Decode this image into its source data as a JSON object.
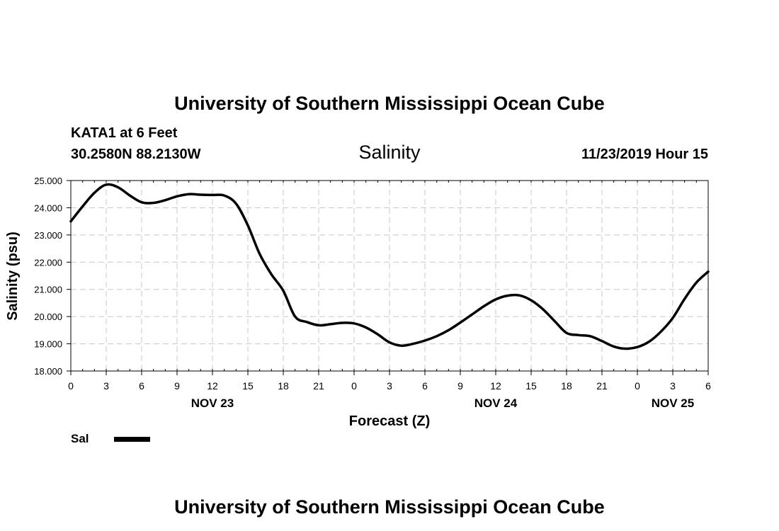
{
  "header": {
    "title_top": "University of Southern Mississippi Ocean Cube",
    "station": "KATA1 at 6 Feet",
    "coords": "30.2580N 88.2130W",
    "datetime": "11/23/2019 Hour 15"
  },
  "footer": {
    "title_bottom": "University of Southern Mississippi Ocean Cube"
  },
  "colors": {
    "line": "#000000",
    "grid": "#c8c8c8",
    "background": "#ffffff"
  },
  "chart_data": {
    "type": "line",
    "title": "Salinity",
    "xlabel": "Forecast (Z)",
    "ylabel": "Salinity (psu)",
    "ylim": [
      18,
      25
    ],
    "xlim": [
      0,
      54
    ],
    "grid": true,
    "y_ticks": [
      "18.000",
      "19.000",
      "20.000",
      "21.000",
      "22.000",
      "23.000",
      "24.000",
      "25.000"
    ],
    "x_tick_labels": [
      "0",
      "3",
      "6",
      "9",
      "12",
      "15",
      "18",
      "21",
      "0",
      "3",
      "6",
      "9",
      "12",
      "15",
      "18",
      "21",
      "0",
      "3",
      "6"
    ],
    "x_tick_hours": [
      0,
      3,
      6,
      9,
      12,
      15,
      18,
      21,
      24,
      27,
      30,
      33,
      36,
      39,
      42,
      45,
      48,
      51,
      54
    ],
    "date_labels": [
      {
        "label": "NOV 23",
        "hour": 12
      },
      {
        "label": "NOV 24",
        "hour": 36
      },
      {
        "label": "NOV 25",
        "hour": 51
      }
    ],
    "legend": {
      "label": "Sal",
      "placement": "bottom-left"
    },
    "series": [
      {
        "name": "Sal",
        "x": [
          0,
          1,
          2,
          3,
          4,
          5,
          6,
          7,
          8,
          9,
          10,
          11,
          12,
          13,
          14,
          15,
          16,
          17,
          18,
          19,
          20,
          21,
          22,
          23,
          24,
          25,
          26,
          27,
          28,
          29,
          30,
          31,
          32,
          33,
          34,
          35,
          36,
          37,
          38,
          39,
          40,
          41,
          42,
          43,
          44,
          45,
          46,
          47,
          48,
          49,
          50,
          51,
          52,
          53,
          54
        ],
        "values": [
          23.5,
          24.05,
          24.55,
          24.85,
          24.75,
          24.45,
          24.2,
          24.18,
          24.28,
          24.42,
          24.5,
          24.48,
          24.47,
          24.45,
          24.15,
          23.35,
          22.3,
          21.55,
          20.95,
          20.0,
          19.8,
          19.68,
          19.72,
          19.77,
          19.75,
          19.6,
          19.35,
          19.05,
          18.93,
          19.0,
          19.12,
          19.28,
          19.5,
          19.78,
          20.08,
          20.38,
          20.63,
          20.77,
          20.78,
          20.6,
          20.27,
          19.83,
          19.4,
          19.32,
          19.28,
          19.1,
          18.9,
          18.82,
          18.88,
          19.08,
          19.45,
          19.95,
          20.65,
          21.25,
          21.65
        ]
      }
    ]
  }
}
